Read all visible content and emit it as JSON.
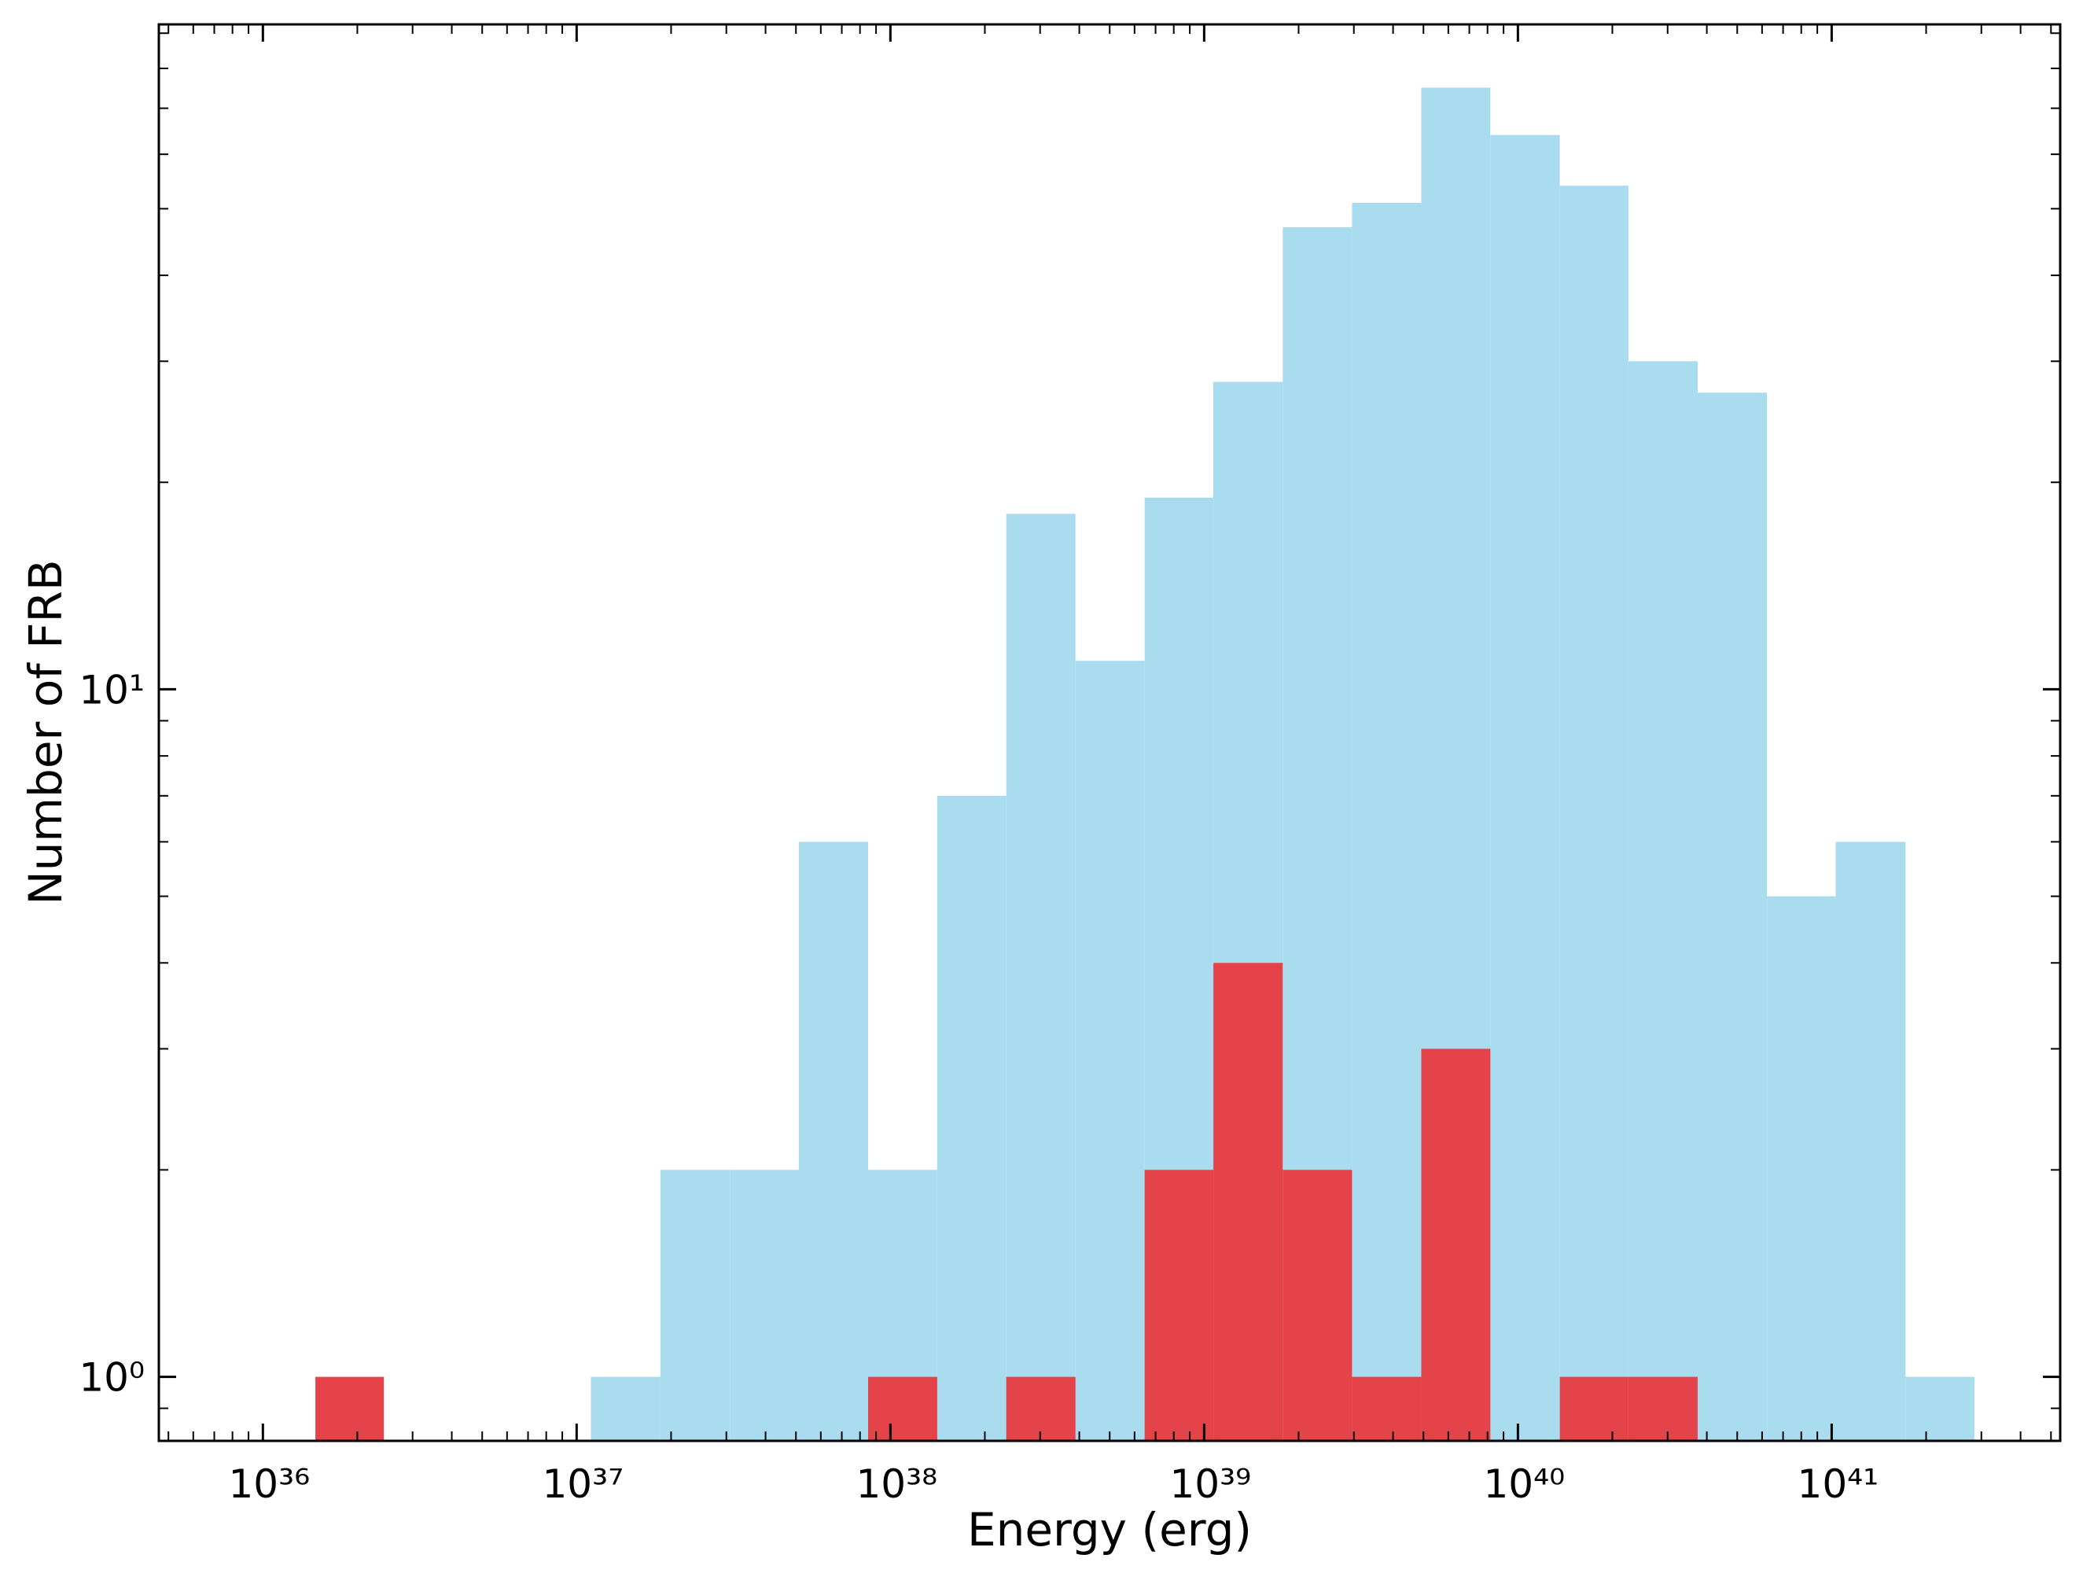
{
  "chart_data": {
    "type": "histogram",
    "xlabel": "Energy (erg)",
    "ylabel": "Number of FRB",
    "xscale": "log",
    "yscale": "log",
    "xlim": [
      4.66e+35,
      5.35e+41
    ],
    "ylim": [
      0.807,
      92.7
    ],
    "xticks": [
      {
        "value": 1e+36,
        "label": "10³⁶"
      },
      {
        "value": 1e+37,
        "label": "10³⁷"
      },
      {
        "value": 1e+38,
        "label": "10³⁸"
      },
      {
        "value": 1e+39,
        "label": "10³⁹"
      },
      {
        "value": 1e+40,
        "label": "10⁴⁰"
      },
      {
        "value": 1e+41,
        "label": "10⁴¹"
      }
    ],
    "yticks": [
      {
        "value": 1,
        "label": "10⁰"
      },
      {
        "value": 10,
        "label": "10¹"
      }
    ],
    "xminor_ticks": [
      5e+35,
      6e+35,
      7e+35,
      8e+35,
      9e+35,
      2e+36,
      3e+36,
      4e+36,
      5e+36,
      6e+36,
      7e+36,
      8e+36,
      9e+36,
      2e+37,
      3e+37,
      4e+37,
      5e+37,
      6e+37,
      7e+37,
      8e+37,
      9e+37,
      2e+38,
      3e+38,
      4e+38,
      5e+38,
      6e+38,
      7e+38,
      8e+38,
      9e+38,
      2e+39,
      3e+39,
      4e+39,
      5e+39,
      6e+39,
      7e+39,
      8e+39,
      9e+39,
      2e+40,
      3e+40,
      4e+40,
      5e+40,
      6e+40,
      7e+40,
      8e+40,
      9e+40,
      2e+41,
      3e+41,
      4e+41,
      5e+41
    ],
    "yminor_ticks": [
      0.9,
      2,
      3,
      4,
      5,
      6,
      7,
      8,
      9,
      20,
      30,
      40,
      50,
      60,
      70,
      80,
      90
    ],
    "series": [
      {
        "color": "#aadcf0",
        "bins": [
          1.11e+37,
          1.85e+37,
          3.08e+37,
          5.11e+37,
          8.49e+37,
          1.41e+38,
          2.34e+38,
          3.89e+38,
          6.46e+38,
          1.07e+39,
          1.78e+39,
          2.96e+39,
          4.92e+39,
          8.17e+39,
          1.36e+40,
          2.25e+40,
          3.74e+40,
          6.22e+40,
          1.03e+41,
          1.72e+41,
          2.85e+41
        ],
        "counts": [
          1,
          2,
          2,
          6,
          2,
          7,
          18,
          11,
          19,
          28,
          47,
          51,
          75,
          64,
          54,
          30,
          27,
          5,
          6,
          1
        ]
      },
      {
        "color": "#e5434a",
        "bins": [
          1.47e+36,
          2.43e+36,
          4.04e+36,
          6.71e+36,
          1.11e+37,
          1.85e+37,
          3.08e+37,
          5.11e+37,
          8.49e+37,
          1.41e+38,
          2.34e+38,
          3.89e+38,
          6.46e+38,
          1.07e+39,
          1.78e+39,
          2.96e+39,
          4.92e+39,
          8.17e+39,
          1.36e+40,
          2.25e+40,
          3.74e+40
        ],
        "counts": [
          1,
          0,
          0,
          0,
          0,
          0,
          0,
          0,
          1,
          0,
          1,
          0,
          2,
          4,
          2,
          1,
          3,
          0,
          1,
          1
        ]
      }
    ]
  }
}
